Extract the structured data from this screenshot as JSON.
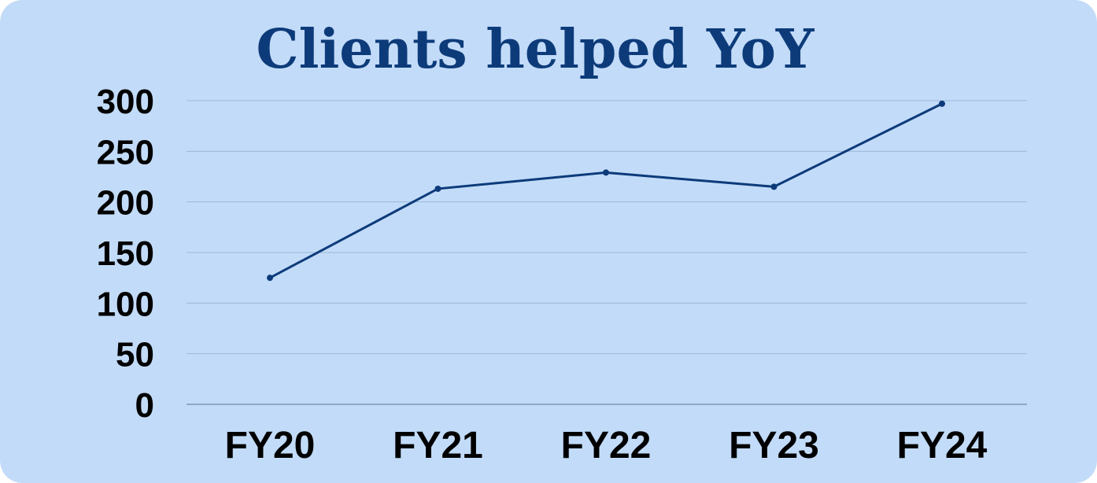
{
  "colors": {
    "background": "#c2dbf8",
    "line": "#0d3b7a",
    "grid": "#9cb8d8",
    "title": "#0d3b7a"
  },
  "chart_data": {
    "type": "line",
    "title": "Clients helped YoY",
    "xlabel": "",
    "ylabel": "",
    "categories": [
      "FY20",
      "FY21",
      "FY22",
      "FY23",
      "FY24"
    ],
    "series": [
      {
        "values": [
          125,
          213,
          229,
          215,
          297
        ]
      }
    ],
    "ylim": [
      0,
      300
    ],
    "yticks": [
      0,
      50,
      100,
      150,
      200,
      250,
      300
    ],
    "grid": true,
    "legend": "none"
  }
}
